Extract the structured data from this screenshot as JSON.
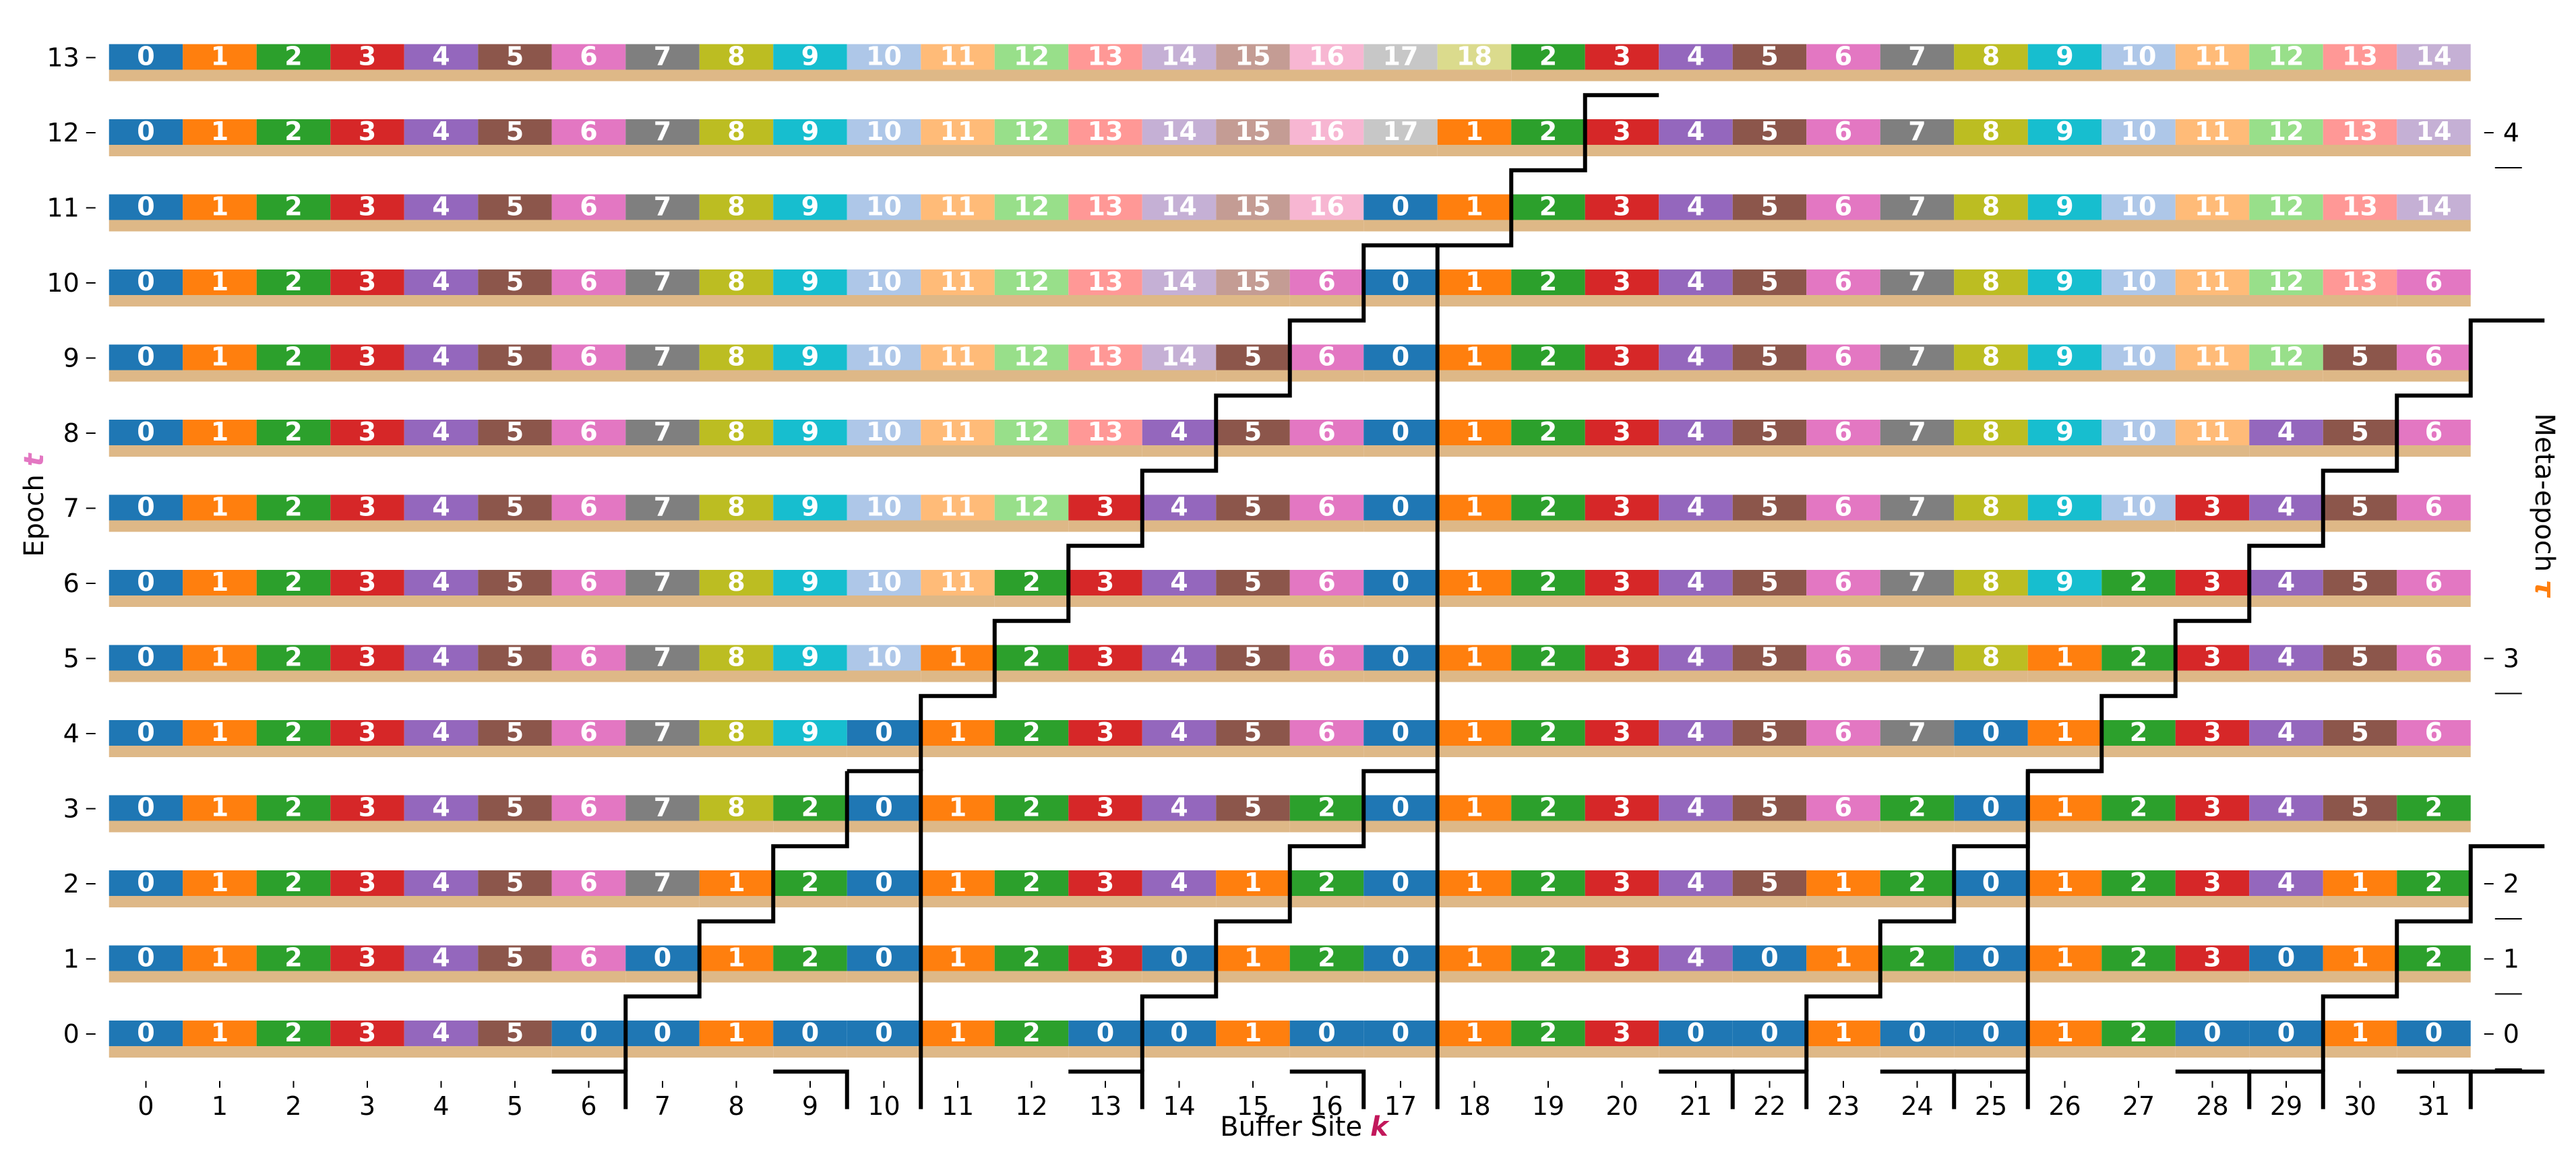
{
  "chart_data": {
    "type": "heatmap",
    "title": "",
    "xlabel": "Buffer Site",
    "xlabel_symbol": "k",
    "ylabel": "Epoch",
    "ylabel_symbol": "t",
    "y2label": "Meta-epoch",
    "y2label_symbol": "τ",
    "colors": {
      "xlabel_symbol": "#c2185b",
      "ylabel_symbol": "#e377c2",
      "y2label_symbol": "#ff7f0e",
      "underbar": "#deb887",
      "partition_line": "#000000"
    },
    "x_ticks": [
      0,
      1,
      2,
      3,
      4,
      5,
      6,
      7,
      8,
      9,
      10,
      11,
      12,
      13,
      14,
      15,
      16,
      17,
      18,
      19,
      20,
      21,
      22,
      23,
      24,
      25,
      26,
      27,
      28,
      29,
      30,
      31
    ],
    "y_ticks": [
      0,
      1,
      2,
      3,
      4,
      5,
      6,
      7,
      8,
      9,
      10,
      11,
      12,
      13
    ],
    "y2_ticks": [
      {
        "label": "0",
        "epoch": 0
      },
      {
        "label": "1",
        "epoch": 1
      },
      {
        "label": "2",
        "epoch": 2
      },
      {
        "label": "3",
        "epoch": 5
      },
      {
        "label": "4",
        "epoch": 12
      }
    ],
    "palette": [
      "#1f77b4",
      "#ff7f0e",
      "#2ca02c",
      "#d62728",
      "#9467bd",
      "#8c564b",
      "#e377c2",
      "#7f7f7f",
      "#bcbd22",
      "#17becf",
      "#aec7e8",
      "#ffbb78",
      "#98df8a",
      "#ff9896",
      "#c5b0d5",
      "#c49c94",
      "#f7b6d2",
      "#c7c7c7",
      "#dbdb8d",
      "#9edae5"
    ],
    "cells": [
      {
        "epoch": 0,
        "values": [
          0,
          1,
          2,
          3,
          4,
          5,
          0,
          0,
          1,
          0,
          0,
          1,
          2,
          0,
          0,
          1,
          0,
          0,
          1,
          2,
          3,
          0,
          0,
          1,
          0,
          0,
          1,
          2,
          0,
          0,
          1,
          0
        ]
      },
      {
        "epoch": 1,
        "values": [
          0,
          1,
          2,
          3,
          4,
          5,
          6,
          0,
          1,
          2,
          0,
          1,
          2,
          3,
          0,
          1,
          2,
          0,
          1,
          2,
          3,
          4,
          0,
          1,
          2,
          0,
          1,
          2,
          3,
          0,
          1,
          2
        ]
      },
      {
        "epoch": 2,
        "values": [
          0,
          1,
          2,
          3,
          4,
          5,
          6,
          7,
          1,
          2,
          0,
          1,
          2,
          3,
          4,
          1,
          2,
          0,
          1,
          2,
          3,
          4,
          5,
          1,
          2,
          0,
          1,
          2,
          3,
          4,
          1,
          2
        ]
      },
      {
        "epoch": 3,
        "values": [
          0,
          1,
          2,
          3,
          4,
          5,
          6,
          7,
          8,
          2,
          0,
          1,
          2,
          3,
          4,
          5,
          2,
          0,
          1,
          2,
          3,
          4,
          5,
          6,
          2,
          0,
          1,
          2,
          3,
          4,
          5,
          2
        ]
      },
      {
        "epoch": 4,
        "values": [
          0,
          1,
          2,
          3,
          4,
          5,
          6,
          7,
          8,
          9,
          0,
          1,
          2,
          3,
          4,
          5,
          6,
          0,
          1,
          2,
          3,
          4,
          5,
          6,
          7,
          0,
          1,
          2,
          3,
          4,
          5,
          6
        ]
      },
      {
        "epoch": 5,
        "values": [
          0,
          1,
          2,
          3,
          4,
          5,
          6,
          7,
          8,
          9,
          10,
          1,
          2,
          3,
          4,
          5,
          6,
          0,
          1,
          2,
          3,
          4,
          5,
          6,
          7,
          8,
          1,
          2,
          3,
          4,
          5,
          6
        ]
      },
      {
        "epoch": 6,
        "values": [
          0,
          1,
          2,
          3,
          4,
          5,
          6,
          7,
          8,
          9,
          10,
          11,
          2,
          3,
          4,
          5,
          6,
          0,
          1,
          2,
          3,
          4,
          5,
          6,
          7,
          8,
          9,
          2,
          3,
          4,
          5,
          6
        ]
      },
      {
        "epoch": 7,
        "values": [
          0,
          1,
          2,
          3,
          4,
          5,
          6,
          7,
          8,
          9,
          10,
          11,
          12,
          3,
          4,
          5,
          6,
          0,
          1,
          2,
          3,
          4,
          5,
          6,
          7,
          8,
          9,
          10,
          3,
          4,
          5,
          6
        ]
      },
      {
        "epoch": 8,
        "values": [
          0,
          1,
          2,
          3,
          4,
          5,
          6,
          7,
          8,
          9,
          10,
          11,
          12,
          13,
          4,
          5,
          6,
          0,
          1,
          2,
          3,
          4,
          5,
          6,
          7,
          8,
          9,
          10,
          11,
          4,
          5,
          6
        ]
      },
      {
        "epoch": 9,
        "values": [
          0,
          1,
          2,
          3,
          4,
          5,
          6,
          7,
          8,
          9,
          10,
          11,
          12,
          13,
          14,
          5,
          6,
          0,
          1,
          2,
          3,
          4,
          5,
          6,
          7,
          8,
          9,
          10,
          11,
          12,
          5,
          6
        ]
      },
      {
        "epoch": 10,
        "values": [
          0,
          1,
          2,
          3,
          4,
          5,
          6,
          7,
          8,
          9,
          10,
          11,
          12,
          13,
          14,
          15,
          6,
          0,
          1,
          2,
          3,
          4,
          5,
          6,
          7,
          8,
          9,
          10,
          11,
          12,
          13,
          6
        ]
      },
      {
        "epoch": 11,
        "values": [
          0,
          1,
          2,
          3,
          4,
          5,
          6,
          7,
          8,
          9,
          10,
          11,
          12,
          13,
          14,
          15,
          16,
          0,
          1,
          2,
          3,
          4,
          5,
          6,
          7,
          8,
          9,
          10,
          11,
          12,
          13,
          14
        ]
      },
      {
        "epoch": 12,
        "values": [
          0,
          1,
          2,
          3,
          4,
          5,
          6,
          7,
          8,
          9,
          10,
          11,
          12,
          13,
          14,
          15,
          16,
          17,
          1,
          2,
          3,
          4,
          5,
          6,
          7,
          8,
          9,
          10,
          11,
          12,
          13,
          14
        ]
      },
      {
        "epoch": 13,
        "values": [
          0,
          1,
          2,
          3,
          4,
          5,
          6,
          7,
          8,
          9,
          10,
          11,
          12,
          13,
          14,
          15,
          16,
          17,
          18,
          2,
          3,
          4,
          5,
          6,
          7,
          8,
          9,
          10,
          11,
          12,
          13,
          14
        ]
      }
    ],
    "underbars": [
      {
        "epoch": 0,
        "ranges": [
          [
            0,
            5
          ],
          [
            6,
            6
          ],
          [
            7,
            8
          ],
          [
            9,
            9
          ],
          [
            10,
            12
          ],
          [
            13,
            13
          ],
          [
            14,
            15
          ],
          [
            16,
            16
          ],
          [
            17,
            20
          ],
          [
            21,
            21
          ],
          [
            22,
            23
          ],
          [
            24,
            24
          ],
          [
            25,
            27
          ],
          [
            28,
            28
          ],
          [
            29,
            30
          ],
          [
            31,
            31
          ]
        ]
      },
      {
        "epoch": 1,
        "ranges": [
          [
            0,
            6
          ],
          [
            7,
            9
          ],
          [
            10,
            13
          ],
          [
            14,
            16
          ],
          [
            17,
            21
          ],
          [
            22,
            24
          ],
          [
            25,
            28
          ],
          [
            29,
            31
          ]
        ]
      },
      {
        "epoch": 2,
        "ranges": [
          [
            0,
            7
          ],
          [
            8,
            9
          ],
          [
            10,
            14
          ],
          [
            15,
            16
          ],
          [
            17,
            22
          ],
          [
            23,
            24
          ],
          [
            25,
            29
          ],
          [
            30,
            31
          ]
        ]
      },
      {
        "epoch": 3,
        "ranges": [
          [
            0,
            8
          ],
          [
            9,
            9
          ],
          [
            10,
            15
          ],
          [
            16,
            16
          ],
          [
            17,
            23
          ],
          [
            24,
            24
          ],
          [
            25,
            30
          ],
          [
            31,
            31
          ]
        ]
      },
      {
        "epoch": 4,
        "ranges": [
          [
            0,
            9
          ],
          [
            10,
            16
          ],
          [
            17,
            24
          ],
          [
            25,
            31
          ]
        ]
      },
      {
        "epoch": 5,
        "ranges": [
          [
            0,
            10
          ],
          [
            11,
            16
          ],
          [
            17,
            25
          ],
          [
            26,
            31
          ]
        ]
      },
      {
        "epoch": 6,
        "ranges": [
          [
            0,
            11
          ],
          [
            12,
            16
          ],
          [
            17,
            26
          ],
          [
            27,
            31
          ]
        ]
      },
      {
        "epoch": 7,
        "ranges": [
          [
            0,
            12
          ],
          [
            13,
            16
          ],
          [
            17,
            27
          ],
          [
            28,
            31
          ]
        ]
      },
      {
        "epoch": 8,
        "ranges": [
          [
            0,
            13
          ],
          [
            14,
            16
          ],
          [
            17,
            28
          ],
          [
            29,
            31
          ]
        ]
      },
      {
        "epoch": 9,
        "ranges": [
          [
            0,
            14
          ],
          [
            15,
            16
          ],
          [
            17,
            29
          ],
          [
            30,
            31
          ]
        ]
      },
      {
        "epoch": 10,
        "ranges": [
          [
            0,
            15
          ],
          [
            16,
            16
          ],
          [
            17,
            30
          ],
          [
            31,
            31
          ]
        ]
      },
      {
        "epoch": 11,
        "ranges": [
          [
            0,
            16
          ],
          [
            17,
            31
          ]
        ]
      },
      {
        "epoch": 12,
        "ranges": [
          [
            0,
            17
          ],
          [
            18,
            31
          ]
        ]
      },
      {
        "epoch": 13,
        "ranges": [
          [
            0,
            18
          ],
          [
            19,
            31
          ]
        ]
      }
    ],
    "partition_lines": [
      [
        [
          5.5,
          -0.5
        ],
        [
          6.5,
          -0.5
        ],
        [
          6.5,
          -1
        ]
      ],
      [
        [
          6.5,
          -0.5
        ],
        [
          6.5,
          0.5
        ],
        [
          7.5,
          0.5
        ],
        [
          7.5,
          1.5
        ],
        [
          8.5,
          1.5
        ],
        [
          8.5,
          2.5
        ],
        [
          9.5,
          2.5
        ],
        [
          9.5,
          3.5
        ]
      ],
      [
        [
          9.5,
          -1
        ],
        [
          9.5,
          -0.5
        ],
        [
          8.5,
          -0.5
        ]
      ],
      [
        [
          9.5,
          3.5
        ],
        [
          10.5,
          3.5
        ],
        [
          10.5,
          -1
        ]
      ],
      [
        [
          12.5,
          -0.5
        ],
        [
          13.5,
          -0.5
        ],
        [
          13.5,
          -1
        ]
      ],
      [
        [
          13.5,
          -0.5
        ],
        [
          13.5,
          0.5
        ],
        [
          14.5,
          0.5
        ],
        [
          14.5,
          1.5
        ],
        [
          15.5,
          1.5
        ],
        [
          15.5,
          2.5
        ],
        [
          16.5,
          2.5
        ],
        [
          16.5,
          3.5
        ],
        [
          17.5,
          3.5
        ]
      ],
      [
        [
          16.5,
          -1
        ],
        [
          16.5,
          -0.5
        ],
        [
          15.5,
          -0.5
        ]
      ],
      [
        [
          10.5,
          3.5
        ],
        [
          10.5,
          4.5
        ],
        [
          11.5,
          4.5
        ],
        [
          11.5,
          5.5
        ],
        [
          12.5,
          5.5
        ],
        [
          12.5,
          6.5
        ],
        [
          13.5,
          6.5
        ],
        [
          13.5,
          7.5
        ],
        [
          14.5,
          7.5
        ],
        [
          14.5,
          8.5
        ],
        [
          15.5,
          8.5
        ],
        [
          15.5,
          9.5
        ],
        [
          16.5,
          9.5
        ],
        [
          16.5,
          10.5
        ],
        [
          17.5,
          10.5
        ]
      ],
      [
        [
          17.5,
          -1
        ],
        [
          17.5,
          10.5
        ],
        [
          18.5,
          10.5
        ],
        [
          18.5,
          11.5
        ],
        [
          19.5,
          11.5
        ],
        [
          19.5,
          12.5
        ],
        [
          20.5,
          12.5
        ]
      ],
      [
        [
          21.5,
          -1
        ],
        [
          21.5,
          -0.5
        ],
        [
          20.5,
          -0.5
        ]
      ],
      [
        [
          21.5,
          -0.5
        ],
        [
          22.5,
          -0.5
        ],
        [
          22.5,
          -1
        ]
      ],
      [
        [
          22.5,
          -0.5
        ],
        [
          22.5,
          0.5
        ],
        [
          23.5,
          0.5
        ],
        [
          23.5,
          1.5
        ],
        [
          24.5,
          1.5
        ],
        [
          24.5,
          2.5
        ],
        [
          25.5,
          2.5
        ],
        [
          25.5,
          3.5
        ],
        [
          26.5,
          3.5
        ]
      ],
      [
        [
          24.5,
          -1
        ],
        [
          24.5,
          -0.5
        ],
        [
          23.5,
          -0.5
        ]
      ],
      [
        [
          25.5,
          -1
        ],
        [
          25.5,
          3.5
        ]
      ],
      [
        [
          25.5,
          -0.5
        ],
        [
          24.5,
          -0.5
        ]
      ],
      [
        [
          28.5,
          -1
        ],
        [
          28.5,
          -0.5
        ],
        [
          27.5,
          -0.5
        ]
      ],
      [
        [
          28.5,
          -0.5
        ],
        [
          29.5,
          -0.5
        ],
        [
          29.5,
          -1
        ]
      ],
      [
        [
          29.5,
          -0.5
        ],
        [
          29.5,
          0.5
        ],
        [
          30.5,
          0.5
        ],
        [
          30.5,
          1.5
        ],
        [
          31.5,
          1.5
        ],
        [
          31.5,
          2.5
        ],
        [
          32.5,
          2.5
        ]
      ],
      [
        [
          31.5,
          -1
        ],
        [
          31.5,
          -0.5
        ],
        [
          30.5,
          -0.5
        ]
      ],
      [
        [
          31.5,
          -0.5
        ],
        [
          32.5,
          -0.5
        ]
      ],
      [
        [
          25.5,
          3.5
        ],
        [
          26.5,
          3.5
        ],
        [
          26.5,
          4.5
        ],
        [
          27.5,
          4.5
        ],
        [
          27.5,
          5.5
        ],
        [
          28.5,
          5.5
        ],
        [
          28.5,
          6.5
        ],
        [
          29.5,
          6.5
        ],
        [
          29.5,
          7.5
        ],
        [
          30.5,
          7.5
        ],
        [
          30.5,
          8.5
        ],
        [
          31.5,
          8.5
        ],
        [
          31.5,
          9.5
        ],
        [
          32.5,
          9.5
        ]
      ]
    ]
  }
}
